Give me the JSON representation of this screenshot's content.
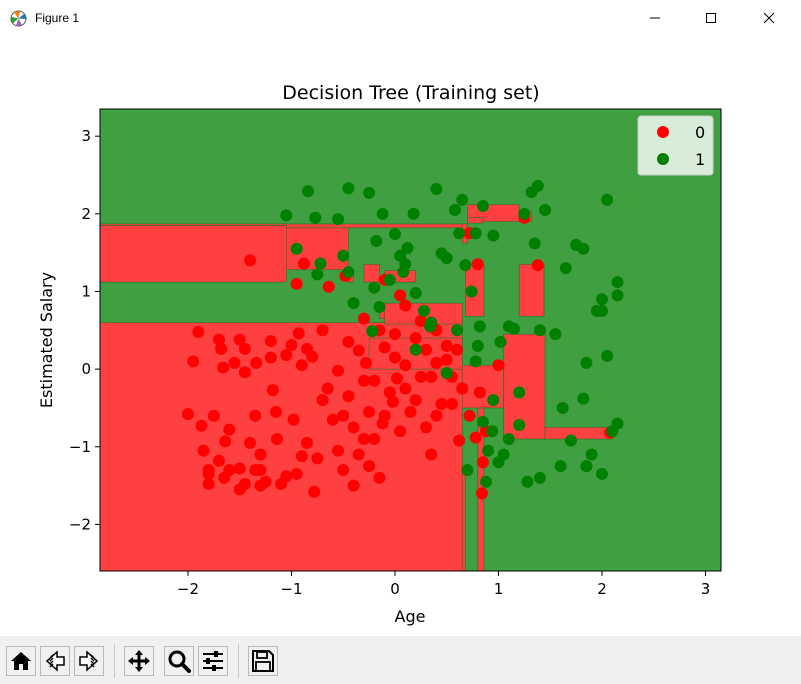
{
  "window": {
    "title": "Figure 1",
    "icons": {
      "app": "matplotlib-logo-icon",
      "minimize": "minimize-icon",
      "maximize": "maximize-icon",
      "close": "close-icon"
    }
  },
  "toolbar": {
    "buttons": [
      {
        "name": "home-button",
        "icon": "home-icon"
      },
      {
        "name": "back-button",
        "icon": "back-arrow-icon"
      },
      {
        "name": "forward-button",
        "icon": "forward-arrow-icon"
      },
      {
        "name": "pan-button",
        "icon": "move-icon"
      },
      {
        "name": "zoom-button",
        "icon": "magnifier-icon"
      },
      {
        "name": "configure-subplots-button",
        "icon": "sliders-icon"
      },
      {
        "name": "save-button",
        "icon": "floppy-disk-icon"
      }
    ]
  },
  "chart_data": {
    "type": "scatter",
    "title": "Decision Tree (Training set)",
    "xlabel": "Age",
    "ylabel": "Estimated Salary",
    "xlim": [
      -2.85,
      3.15
    ],
    "ylim": [
      -2.6,
      3.35
    ],
    "xticks": [
      -2,
      -1,
      0,
      1,
      2,
      3
    ],
    "yticks": [
      -2,
      -1,
      0,
      1,
      2,
      3
    ],
    "grid": false,
    "legend": {
      "placement": "top-right",
      "entries": [
        "0",
        "1"
      ]
    },
    "colors": {
      "region_0": "#ff4040",
      "region_1": "#409f40",
      "class_0": "#ff0000",
      "class_1": "#008000"
    },
    "decision_regions": {
      "class_0": [
        {
          "x": [
            -2.85,
            0.65
          ],
          "y": [
            -2.6,
            0.6
          ]
        },
        {
          "x": [
            0.65,
            0.68
          ],
          "y": [
            -2.6,
            -1.3
          ]
        },
        {
          "x": [
            0.8,
            0.86
          ],
          "y": [
            -2.6,
            -0.5
          ]
        },
        {
          "x": [
            -0.25,
            0.65
          ],
          "y": [
            0.0,
            0.4
          ]
        },
        {
          "x": [
            0.65,
            1.05
          ],
          "y": [
            -0.5,
            0.05
          ]
        },
        {
          "x": [
            1.05,
            1.45
          ],
          "y": [
            -0.9,
            0.45
          ]
        },
        {
          "x": [
            1.45,
            2.1
          ],
          "y": [
            -0.9,
            -0.75
          ]
        },
        {
          "x": [
            -2.85,
            -1.05
          ],
          "y": [
            1.85,
            1.87
          ]
        },
        {
          "x": [
            -2.85,
            -1.05
          ],
          "y": [
            1.12,
            1.85
          ]
        },
        {
          "x": [
            -1.05,
            -0.45
          ],
          "y": [
            1.28,
            1.82
          ]
        },
        {
          "x": [
            -1.05,
            0.65
          ],
          "y": [
            1.82,
            1.87
          ]
        },
        {
          "x": [
            -0.45,
            -0.4
          ],
          "y": [
            1.12,
            1.28
          ]
        },
        {
          "x": [
            -0.3,
            -0.15
          ],
          "y": [
            1.12,
            1.35
          ]
        },
        {
          "x": [
            -0.1,
            0.2
          ],
          "y": [
            1.12,
            1.27
          ]
        },
        {
          "x": [
            -0.1,
            0.65
          ],
          "y": [
            0.58,
            0.85
          ]
        },
        {
          "x": [
            -0.15,
            -0.1
          ],
          "y": [
            0.65,
            0.85
          ]
        },
        {
          "x": [
            0.65,
            0.7
          ],
          "y": [
            1.62,
            1.87
          ]
        },
        {
          "x": [
            0.7,
            1.2
          ],
          "y": [
            1.9,
            2.12
          ]
        },
        {
          "x": [
            0.7,
            0.85
          ],
          "y": [
            1.88,
            1.95
          ]
        },
        {
          "x": [
            1.2,
            1.32
          ],
          "y": [
            1.9,
            2.03
          ]
        },
        {
          "x": [
            0.68,
            0.86
          ],
          "y": [
            0.68,
            1.35
          ]
        },
        {
          "x": [
            1.2,
            1.44
          ],
          "y": [
            0.68,
            1.35
          ]
        }
      ]
    },
    "series": [
      {
        "name": "0",
        "points": [
          [
            -1.9,
            0.48
          ],
          [
            -1.87,
            -0.73
          ],
          [
            -1.8,
            -1.35
          ],
          [
            -1.8,
            -1.48
          ],
          [
            -1.8,
            -1.3
          ],
          [
            -1.7,
            0.38
          ],
          [
            -1.7,
            -1.18
          ],
          [
            -1.68,
            0.26
          ],
          [
            -1.66,
            0.02
          ],
          [
            -1.65,
            -1.4
          ],
          [
            -1.64,
            -0.93
          ],
          [
            -1.6,
            -1.3
          ],
          [
            -1.55,
            0.08
          ],
          [
            -1.5,
            0.38
          ],
          [
            -1.5,
            -1.28
          ],
          [
            -1.45,
            0.26
          ],
          [
            -1.45,
            -0.04
          ],
          [
            -1.45,
            -1.48
          ],
          [
            -1.4,
            -0.95
          ],
          [
            -1.35,
            -1.3
          ],
          [
            -1.34,
            0.08
          ],
          [
            -1.3,
            -1.1
          ],
          [
            -1.3,
            -1.3
          ],
          [
            -1.25,
            -1.45
          ],
          [
            -1.2,
            0.36
          ],
          [
            -1.18,
            -0.27
          ],
          [
            -1.14,
            -0.9
          ],
          [
            -1.1,
            -1.48
          ],
          [
            -1.05,
            0.18
          ],
          [
            -1.0,
            0.31
          ],
          [
            -0.98,
            -0.65
          ],
          [
            -0.95,
            1.1
          ],
          [
            -0.93,
            0.46
          ],
          [
            -0.9,
            -1.12
          ],
          [
            -0.85,
            0.26
          ],
          [
            -0.8,
            0.16
          ],
          [
            -0.78,
            -1.58
          ],
          [
            -0.7,
            -0.4
          ],
          [
            -0.6,
            -0.65
          ],
          [
            -0.55,
            -0.02
          ],
          [
            -0.5,
            -0.6
          ],
          [
            -0.5,
            -1.3
          ],
          [
            -0.45,
            0.35
          ],
          [
            -0.4,
            -0.75
          ],
          [
            -0.4,
            -1.5
          ],
          [
            -0.35,
            0.24
          ],
          [
            -0.3,
            0.65
          ],
          [
            -0.3,
            -0.9
          ],
          [
            -0.28,
            0.08
          ],
          [
            -0.25,
            -0.55
          ],
          [
            -0.2,
            -0.15
          ],
          [
            -0.2,
            -0.9
          ],
          [
            -0.15,
            -1.4
          ],
          [
            -0.1,
            0.28
          ],
          [
            -0.1,
            -0.6
          ],
          [
            -0.05,
            -0.3
          ],
          [
            -0.02,
            -0.42
          ],
          [
            0.0,
            0.15
          ],
          [
            0.02,
            -0.12
          ],
          [
            0.05,
            -0.8
          ],
          [
            0.1,
            0.05
          ],
          [
            0.1,
            -0.25
          ],
          [
            0.2,
            -0.4
          ],
          [
            0.3,
            0.25
          ],
          [
            0.3,
            -0.75
          ],
          [
            0.35,
            -1.1
          ],
          [
            0.4,
            0.08
          ],
          [
            0.45,
            -0.45
          ],
          [
            0.5,
            0.3
          ],
          [
            0.6,
            0.25
          ],
          [
            0.62,
            -0.92
          ],
          [
            0.72,
            1.75
          ],
          [
            0.8,
            1.35
          ],
          [
            0.82,
            -0.3
          ],
          [
            0.84,
            -1.6
          ],
          [
            0.88,
            -0.8
          ],
          [
            1.0,
            0.05
          ],
          [
            1.25,
            1.95
          ],
          [
            1.38,
            1.34
          ],
          [
            2.08,
            -0.82
          ],
          [
            -1.4,
            1.4
          ],
          [
            -0.88,
            1.36
          ],
          [
            -0.64,
            1.06
          ],
          [
            -0.48,
            1.2
          ],
          [
            -0.1,
            1.15
          ],
          [
            0.05,
            0.95
          ],
          [
            0.1,
            0.82
          ],
          [
            0.25,
            0.62
          ],
          [
            0.4,
            0.5
          ],
          [
            0.5,
            0.12
          ],
          [
            0.55,
            -0.1
          ],
          [
            0.65,
            -0.25
          ],
          [
            0.72,
            -0.6
          ],
          [
            0.78,
            -0.88
          ],
          [
            0.85,
            -1.2
          ],
          [
            -2.0,
            -0.58
          ],
          [
            -1.95,
            0.1
          ],
          [
            -1.85,
            -1.05
          ],
          [
            -1.75,
            -0.6
          ],
          [
            -1.6,
            -0.78
          ],
          [
            -1.5,
            -1.55
          ],
          [
            -1.35,
            -0.6
          ],
          [
            -1.3,
            -1.5
          ],
          [
            -1.2,
            0.15
          ],
          [
            -1.15,
            -0.55
          ],
          [
            -1.05,
            -1.38
          ],
          [
            -0.95,
            -1.35
          ],
          [
            -0.9,
            0.05
          ],
          [
            -0.85,
            -0.95
          ],
          [
            -0.75,
            -1.15
          ],
          [
            -0.7,
            0.5
          ],
          [
            -0.65,
            -0.25
          ],
          [
            -0.55,
            -1.05
          ],
          [
            -0.45,
            -0.35
          ],
          [
            -0.35,
            -1.1
          ],
          [
            -0.3,
            -0.15
          ],
          [
            -0.25,
            -1.25
          ],
          [
            -0.15,
            0.5
          ],
          [
            -0.12,
            -0.7
          ],
          [
            0.0,
            0.45
          ],
          [
            0.15,
            -0.55
          ],
          [
            0.2,
            0.4
          ],
          [
            0.25,
            -0.1
          ],
          [
            0.35,
            -0.1
          ],
          [
            0.4,
            -0.6
          ],
          [
            0.55,
            -0.45
          ]
        ]
      },
      {
        "name": "1",
        "points": [
          [
            -1.05,
            1.98
          ],
          [
            -0.95,
            1.55
          ],
          [
            -0.84,
            2.29
          ],
          [
            -0.77,
            1.95
          ],
          [
            -0.75,
            1.22
          ],
          [
            -0.72,
            1.36
          ],
          [
            -0.55,
            1.93
          ],
          [
            -0.5,
            1.46
          ],
          [
            -0.45,
            1.25
          ],
          [
            -0.45,
            2.33
          ],
          [
            -0.4,
            0.85
          ],
          [
            -0.25,
            2.27
          ],
          [
            -0.22,
            0.49
          ],
          [
            -0.18,
            1.65
          ],
          [
            -0.12,
            2.0
          ],
          [
            -0.05,
            1.15
          ],
          [
            0.0,
            1.74
          ],
          [
            0.05,
            1.46
          ],
          [
            0.08,
            1.25
          ],
          [
            0.12,
            1.56
          ],
          [
            0.18,
            2.0
          ],
          [
            0.2,
            0.98
          ],
          [
            0.28,
            0.75
          ],
          [
            0.34,
            0.55
          ],
          [
            0.4,
            2.32
          ],
          [
            0.45,
            1.49
          ],
          [
            0.5,
            1.43
          ],
          [
            0.58,
            2.05
          ],
          [
            0.62,
            1.75
          ],
          [
            0.65,
            2.18
          ],
          [
            0.68,
            1.34
          ],
          [
            0.7,
            -1.3
          ],
          [
            0.74,
            1.0
          ],
          [
            0.78,
            1.75
          ],
          [
            0.8,
            0.3
          ],
          [
            0.82,
            0.55
          ],
          [
            0.85,
            -0.68
          ],
          [
            0.88,
            -1.45
          ],
          [
            0.9,
            -1.05
          ],
          [
            0.94,
            -0.8
          ],
          [
            1.0,
            -1.2
          ],
          [
            1.05,
            -1.1
          ],
          [
            1.1,
            0.55
          ],
          [
            1.1,
            -0.9
          ],
          [
            1.15,
            0.52
          ],
          [
            1.2,
            -0.72
          ],
          [
            1.25,
            2.0
          ],
          [
            1.28,
            -1.45
          ],
          [
            1.32,
            2.28
          ],
          [
            1.35,
            1.62
          ],
          [
            1.38,
            2.36
          ],
          [
            1.4,
            -1.4
          ],
          [
            1.45,
            2.05
          ],
          [
            1.55,
            0.45
          ],
          [
            1.6,
            -1.25
          ],
          [
            1.65,
            1.3
          ],
          [
            1.7,
            -0.92
          ],
          [
            1.75,
            1.6
          ],
          [
            1.82,
            1.55
          ],
          [
            1.85,
            -1.25
          ],
          [
            1.85,
            0.08
          ],
          [
            1.9,
            -1.1
          ],
          [
            1.95,
            0.75
          ],
          [
            2.0,
            -1.35
          ],
          [
            2.0,
            0.9
          ],
          [
            2.0,
            0.75
          ],
          [
            2.05,
            2.18
          ],
          [
            2.05,
            0.17
          ],
          [
            2.1,
            -0.8
          ],
          [
            2.15,
            1.12
          ],
          [
            2.15,
            0.95
          ],
          [
            2.15,
            -0.7
          ],
          [
            1.82,
            -0.38
          ],
          [
            0.95,
            -0.4
          ],
          [
            1.02,
            0.35
          ],
          [
            0.6,
            0.5
          ],
          [
            0.35,
            0.6
          ],
          [
            0.1,
            1.35
          ],
          [
            -0.15,
            0.8
          ],
          [
            0.85,
            2.1
          ],
          [
            0.95,
            1.72
          ],
          [
            1.4,
            0.5
          ],
          [
            1.62,
            -0.5
          ],
          [
            1.2,
            -0.3
          ],
          [
            0.78,
            0.1
          ],
          [
            0.5,
            -0.05
          ],
          [
            0.2,
            0.25
          ],
          [
            -0.2,
            1.05
          ]
        ]
      }
    ]
  }
}
